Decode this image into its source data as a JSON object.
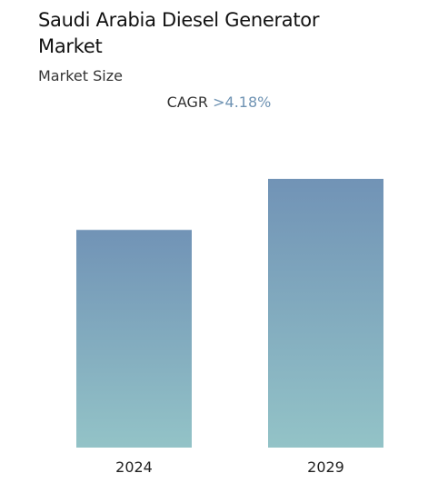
{
  "header": {
    "title": "Saudi Arabia Diesel Generator Market",
    "subtitle": "Market Size"
  },
  "cagr": {
    "label": "CAGR",
    "value": ">4.18%"
  },
  "colors": {
    "bar_top": "#7193b6",
    "bar_bottom": "#93c3c7",
    "cagr_value": "#6f93b3"
  },
  "chart_data": {
    "type": "bar",
    "categories": [
      "2024",
      "2029"
    ],
    "values": [
      0.81,
      1.0
    ],
    "values_note_free": true,
    "title": "Saudi Arabia Diesel Generator Market",
    "subtitle": "Market Size",
    "xlabel": "",
    "ylabel": "",
    "ylim": [
      0,
      1.0
    ],
    "grid": false,
    "legend": "none"
  }
}
